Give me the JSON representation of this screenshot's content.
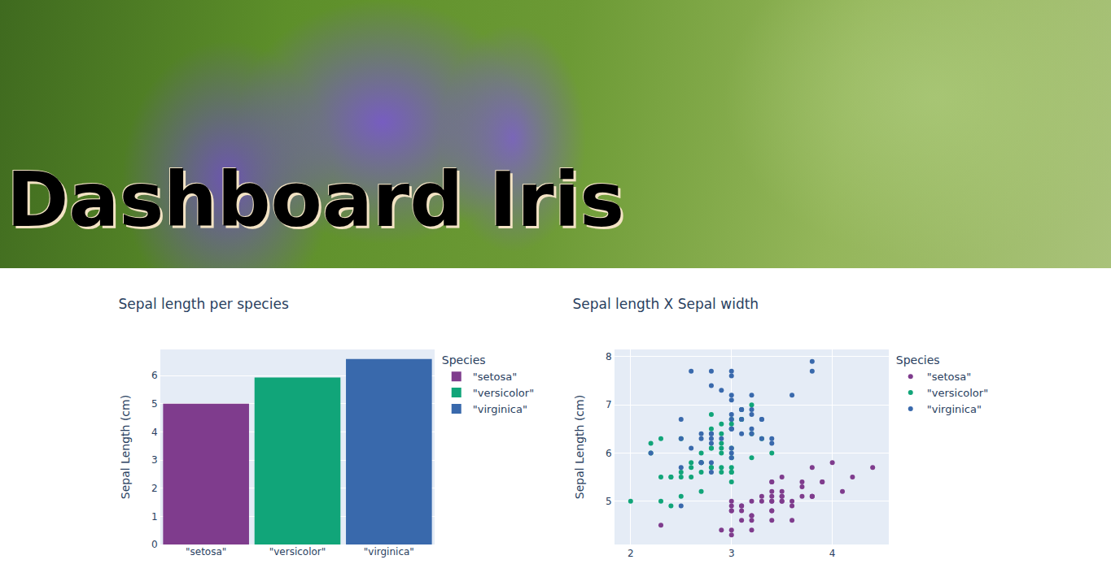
{
  "header": {
    "title": "Dashboard Iris"
  },
  "chart_data": [
    {
      "type": "bar",
      "title": "Sepal length per species",
      "y_label": "Sepal Length (cm)",
      "legend_title": "Species",
      "legend": "right",
      "grid": true,
      "categories": [
        "\"setosa\"",
        "\"versicolor\"",
        "\"virginica\""
      ],
      "values": [
        5.006,
        5.936,
        6.588
      ],
      "colors": [
        "#7f3c8d",
        "#11a579",
        "#3969ac"
      ],
      "ylim": [
        0,
        6.93
      ],
      "yticks": [
        0,
        1,
        2,
        3,
        4,
        5,
        6
      ]
    },
    {
      "type": "scatter",
      "title": "Sepal length X Sepal width",
      "y_label": "Sepal Length (cm)",
      "legend_title": "Species",
      "legend": "right",
      "grid": true,
      "marker": "circle",
      "xlim": [
        1.84,
        4.56
      ],
      "xticks": [
        2,
        3,
        4
      ],
      "ylim": [
        4.1,
        8.15
      ],
      "yticks": [
        5,
        6,
        7,
        8
      ],
      "series": [
        {
          "name": "\"setosa\"",
          "color": "#7f3c8d",
          "x": [
            3.5,
            3.0,
            3.2,
            3.1,
            3.6,
            3.9,
            3.4,
            3.4,
            2.9,
            3.1,
            3.7,
            3.4,
            3.0,
            3.0,
            4.0,
            4.4,
            3.9,
            3.5,
            3.8,
            3.8,
            3.4,
            3.7,
            3.6,
            3.3,
            3.4,
            3.0,
            3.4,
            3.5,
            3.4,
            3.2,
            3.1,
            3.4,
            4.1,
            4.2,
            3.1,
            3.2,
            3.5,
            3.6,
            3.0,
            3.4,
            3.5,
            2.3,
            3.2,
            3.5,
            3.8,
            3.0,
            3.8,
            3.2,
            3.7,
            3.3
          ],
          "values": [
            5.1,
            4.9,
            4.7,
            4.6,
            5.0,
            5.4,
            4.6,
            5.0,
            4.4,
            4.9,
            5.4,
            4.8,
            4.8,
            4.3,
            5.8,
            5.7,
            5.4,
            5.1,
            5.7,
            5.1,
            5.4,
            5.1,
            4.6,
            5.1,
            4.8,
            5.0,
            5.0,
            5.2,
            5.2,
            4.7,
            4.8,
            5.4,
            5.2,
            5.5,
            4.9,
            5.0,
            5.5,
            4.9,
            4.4,
            5.1,
            5.0,
            4.5,
            4.4,
            5.0,
            5.1,
            4.8,
            5.1,
            4.6,
            5.3,
            5.0
          ]
        },
        {
          "name": "\"versicolor\"",
          "color": "#11a579",
          "x": [
            3.2,
            3.2,
            3.1,
            2.3,
            2.8,
            2.8,
            3.3,
            2.4,
            2.9,
            2.7,
            2.0,
            3.0,
            2.2,
            2.9,
            2.9,
            3.1,
            3.0,
            2.7,
            2.2,
            2.5,
            3.2,
            2.8,
            2.5,
            2.8,
            2.9,
            3.0,
            2.8,
            3.0,
            2.9,
            2.6,
            2.4,
            2.4,
            2.7,
            2.7,
            3.0,
            3.4,
            3.1,
            2.3,
            3.0,
            2.5,
            2.6,
            3.0,
            2.6,
            2.3,
            2.7,
            3.0,
            2.9,
            2.9,
            2.5,
            2.8
          ],
          "values": [
            7.0,
            6.4,
            6.9,
            5.5,
            6.5,
            5.7,
            6.3,
            4.9,
            6.6,
            5.2,
            5.0,
            5.9,
            6.0,
            6.1,
            5.6,
            6.7,
            5.6,
            5.8,
            6.2,
            5.6,
            5.9,
            6.1,
            6.3,
            6.1,
            6.4,
            6.6,
            6.8,
            6.7,
            6.0,
            5.7,
            5.5,
            5.5,
            5.8,
            6.0,
            5.4,
            6.0,
            6.7,
            6.3,
            5.6,
            5.5,
            5.5,
            6.1,
            5.8,
            5.0,
            5.6,
            5.7,
            5.7,
            6.2,
            5.1,
            5.7
          ]
        },
        {
          "name": "\"virginica\"",
          "color": "#3969ac",
          "x": [
            3.3,
            2.7,
            3.0,
            2.9,
            3.0,
            3.0,
            2.5,
            2.9,
            2.5,
            3.6,
            3.2,
            2.7,
            3.0,
            2.5,
            2.8,
            3.2,
            3.0,
            3.8,
            2.6,
            2.2,
            3.2,
            2.8,
            2.8,
            2.7,
            3.3,
            3.2,
            2.8,
            3.0,
            2.8,
            3.0,
            2.8,
            3.8,
            2.8,
            2.8,
            2.6,
            3.0,
            3.4,
            3.1,
            3.0,
            3.1,
            3.1,
            3.1,
            2.7,
            3.2,
            3.3,
            3.0,
            2.5,
            3.0,
            3.4,
            3.0
          ],
          "values": [
            6.3,
            5.8,
            7.1,
            6.3,
            6.5,
            7.6,
            4.9,
            7.3,
            6.7,
            7.2,
            6.5,
            6.4,
            6.8,
            5.7,
            5.8,
            6.4,
            6.5,
            7.7,
            7.7,
            6.0,
            6.9,
            5.6,
            7.7,
            6.3,
            6.7,
            7.2,
            6.2,
            6.1,
            6.4,
            7.2,
            7.4,
            7.9,
            6.4,
            6.3,
            6.1,
            7.7,
            6.3,
            6.4,
            6.0,
            6.9,
            6.7,
            6.9,
            5.8,
            6.8,
            6.7,
            6.7,
            6.3,
            6.5,
            6.2,
            5.9
          ]
        }
      ]
    }
  ]
}
